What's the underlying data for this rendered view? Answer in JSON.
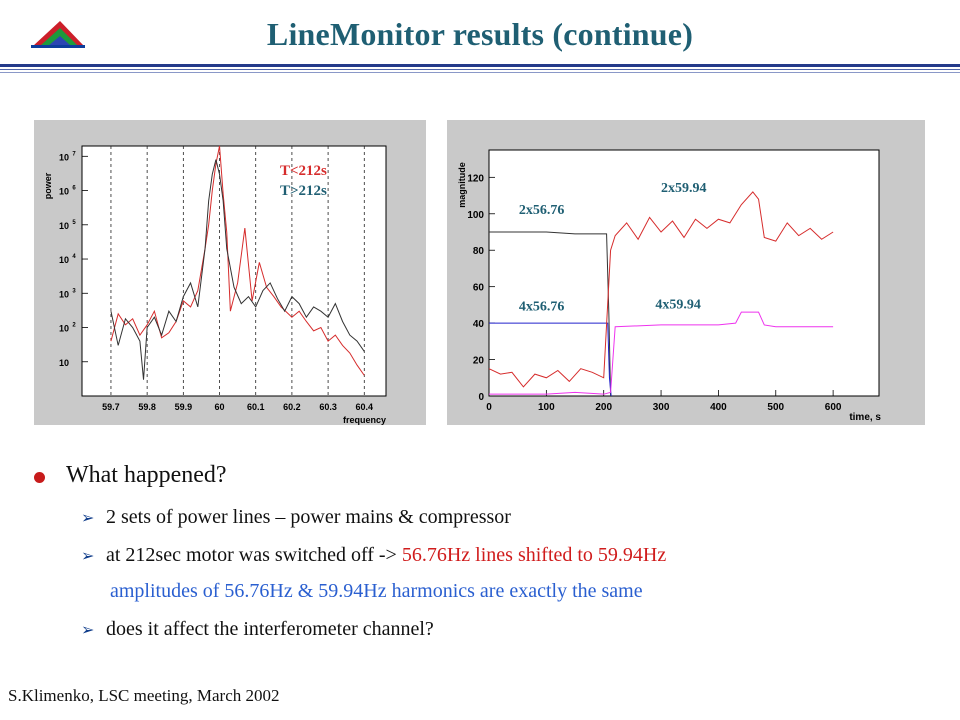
{
  "title": "LineMonitor results (continue)",
  "footer": "S.Klimenko, LSC meeting, March 2002",
  "colors": {
    "title": "#1f5f73",
    "red_series": "#d62c2c",
    "black_series": "#333333",
    "blue_series": "#2222cc",
    "magenta_series": "#ee33ee",
    "accent_red": "#d01c1c",
    "accent_blue": "#2a5fd0"
  },
  "bullets": {
    "main": "What happened?",
    "sub1": "2 sets of power lines  –  power mains & compressor",
    "sub2_black": "at 212sec motor was switched off  -> ",
    "sub2_red": "56.76Hz lines shifted to 59.94Hz",
    "sub2_cont": "amplitudes of 56.76Hz  & 59.94Hz harmonics are exactly the same",
    "sub3": "does it affect the interferometer channel?"
  },
  "chart_data": [
    {
      "type": "line",
      "title": "",
      "xlabel": "frequency",
      "ylabel": "power",
      "yscale": "log",
      "xlim": [
        59.62,
        60.46
      ],
      "ylim": [
        1,
        20000000
      ],
      "grid": "vertical dashed",
      "legend": [
        {
          "name": "T<212s",
          "color": "#d62c2c"
        },
        {
          "name": "T>212s",
          "color": "#1f5f73"
        }
      ],
      "x_ticks": [
        "59.7",
        "59.8",
        "59.9",
        "60",
        "60.1",
        "60.2",
        "60.3",
        "60.4"
      ],
      "y_ticks": [
        {
          "exp": "7"
        },
        {
          "exp": "6"
        },
        {
          "exp": "5"
        },
        {
          "exp": "4"
        },
        {
          "exp": "3"
        },
        {
          "exp": "2"
        },
        {
          "exp": ""
        }
      ],
      "y_tick_values": [
        10000000,
        1000000,
        100000,
        10000,
        1000,
        100,
        10
      ],
      "series": [
        {
          "name": "T<212s",
          "color": "#d62c2c",
          "x": [
            59.7,
            59.72,
            59.74,
            59.76,
            59.78,
            59.8,
            59.82,
            59.84,
            59.86,
            59.88,
            59.9,
            59.92,
            59.94,
            59.96,
            59.97,
            59.98,
            59.99,
            60.0,
            60.01,
            60.02,
            60.03,
            60.05,
            60.07,
            60.09,
            60.11,
            60.13,
            60.15,
            60.17,
            60.2,
            60.22,
            60.24,
            60.26,
            60.28,
            60.3,
            60.32,
            60.34,
            60.36,
            60.38,
            60.4
          ],
          "y": [
            40,
            250,
            120,
            180,
            60,
            120,
            300,
            50,
            70,
            150,
            600,
            400,
            1200,
            20000,
            100000,
            1000000,
            6000000,
            20000000,
            800000,
            60000,
            300,
            2000,
            80000,
            600,
            8000,
            1500,
            800,
            400,
            200,
            300,
            150,
            80,
            100,
            40,
            60,
            30,
            18,
            8,
            4
          ]
        },
        {
          "name": "T>212s",
          "color": "#333333",
          "x": [
            59.7,
            59.72,
            59.74,
            59.76,
            59.78,
            59.79,
            59.8,
            59.82,
            59.84,
            59.86,
            59.88,
            59.9,
            59.92,
            59.94,
            59.96,
            59.97,
            59.98,
            59.99,
            60.0,
            60.01,
            60.02,
            60.04,
            60.06,
            60.08,
            60.1,
            60.12,
            60.14,
            60.16,
            60.18,
            60.2,
            60.22,
            60.24,
            60.26,
            60.28,
            60.3,
            60.32,
            60.34,
            60.36,
            60.38,
            60.4
          ],
          "y": [
            300,
            30,
            180,
            100,
            40,
            3,
            100,
            200,
            60,
            300,
            150,
            800,
            2000,
            400,
            20000,
            500000,
            3000000,
            8000000,
            3000000,
            500000,
            20000,
            1500,
            500,
            800,
            400,
            1200,
            2000,
            700,
            300,
            800,
            500,
            200,
            400,
            300,
            200,
            500,
            150,
            60,
            40,
            20
          ]
        }
      ]
    },
    {
      "type": "line",
      "title": "",
      "xlabel": "time, s",
      "ylabel": "magnitude",
      "xlim": [
        0,
        680
      ],
      "ylim": [
        0,
        135
      ],
      "grid": "none",
      "x_ticks": [
        0,
        100,
        200,
        300,
        400,
        500,
        600
      ],
      "y_ticks": [
        0,
        20,
        40,
        60,
        80,
        100,
        120
      ],
      "annotations": [
        {
          "text": "2x59.94",
          "x": 300,
          "y": 112
        },
        {
          "text": "2x56.76",
          "x": 52,
          "y": 100
        },
        {
          "text": "4x59.94",
          "x": 290,
          "y": 48
        },
        {
          "text": "4x56.76",
          "x": 52,
          "y": 47
        }
      ],
      "series": [
        {
          "name": "2x56.76",
          "color": "#333333",
          "x": [
            0,
            100,
            150,
            190,
            205,
            209,
            212
          ],
          "y": [
            90,
            90,
            89,
            89,
            89,
            45,
            0
          ]
        },
        {
          "name": "4x56.76",
          "color": "#2222cc",
          "x": [
            0,
            100,
            150,
            190,
            207,
            210,
            213
          ],
          "y": [
            40,
            40,
            40,
            40,
            40,
            10,
            0
          ]
        },
        {
          "name": "2x59.94 (red)",
          "color": "#d62c2c",
          "x": [
            0,
            20,
            40,
            60,
            80,
            100,
            120,
            140,
            160,
            180,
            200,
            212,
            220,
            240,
            260,
            280,
            300,
            320,
            340,
            360,
            380,
            400,
            420,
            430,
            440,
            460,
            470,
            480,
            500,
            520,
            540,
            560,
            580,
            600
          ],
          "y": [
            15,
            12,
            13,
            5,
            12,
            10,
            14,
            8,
            15,
            13,
            10,
            80,
            88,
            95,
            86,
            98,
            90,
            96,
            87,
            97,
            92,
            97,
            95,
            100,
            105,
            112,
            108,
            87,
            85,
            95,
            88,
            92,
            86,
            90
          ]
        },
        {
          "name": "4x59.94 (magenta)",
          "color": "#ee33ee",
          "x": [
            0,
            50,
            100,
            150,
            200,
            212,
            220,
            300,
            400,
            430,
            440,
            470,
            480,
            500,
            600
          ],
          "y": [
            1,
            1,
            1,
            2,
            1,
            2,
            38,
            39,
            39,
            40,
            46,
            46,
            39,
            38,
            38
          ]
        }
      ]
    }
  ]
}
